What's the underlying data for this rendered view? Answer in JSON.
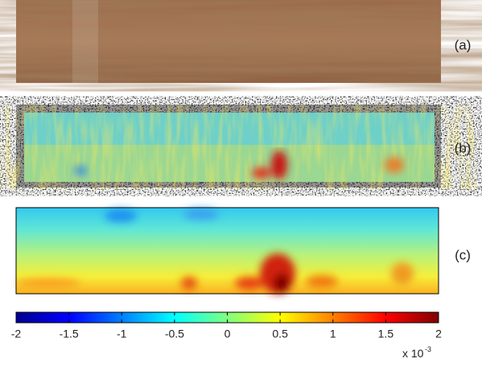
{
  "panels": [
    {
      "label": "(a)"
    },
    {
      "label": "(b)"
    },
    {
      "label": "(c)"
    }
  ],
  "colorbar": {
    "lim": [
      -2,
      2
    ],
    "ticks": [
      -2,
      -1.5,
      -1,
      -0.5,
      0,
      0.5,
      1,
      1.5,
      2
    ],
    "multiplier": "x 10",
    "exponent": "-3"
  }
}
